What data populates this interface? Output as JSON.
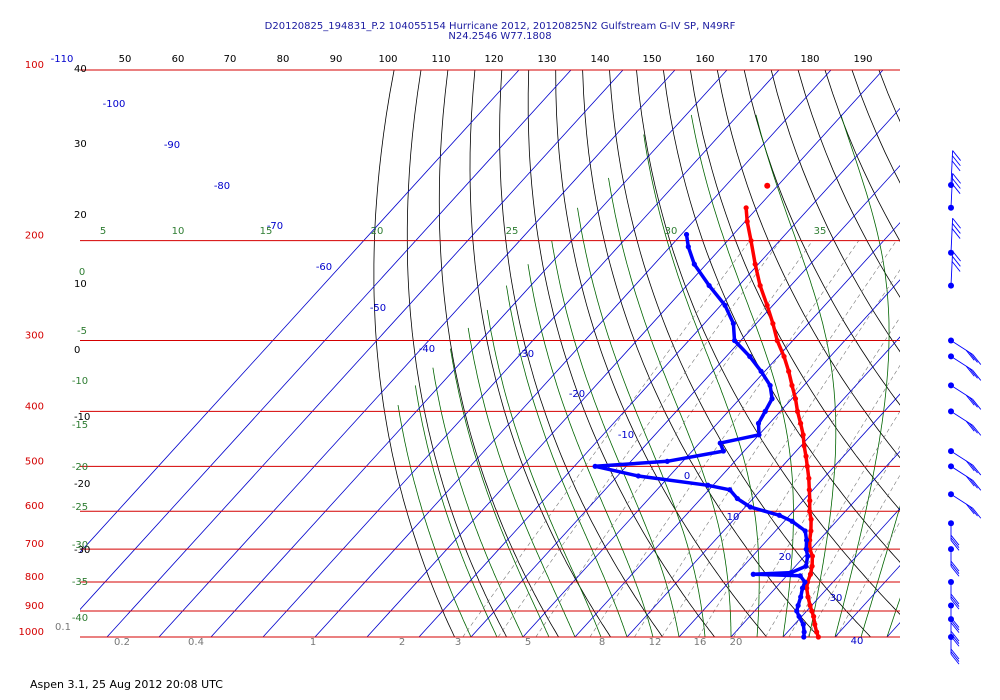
{
  "header": {
    "line1": "D20120825_194831_P.2 104055154 Hurricane 2012, 20120825N2 Gulfstream G-IV SP, N49RF",
    "line2": "N24.2546 W77.1808"
  },
  "footer": {
    "text": "Aspen 3.1, 25 Aug 2012  20:08 UTC"
  },
  "chart_data": {
    "type": "line",
    "subtype": "skew-T log-P sounding",
    "title": "D20120825_194831_P.2 104055154 Hurricane 2012, 20120825N2 Gulfstream G-IV SP, N49RF / N24.2546 W77.1808",
    "pressure_levels": [
      "100",
      "200",
      "300",
      "400",
      "500",
      "600",
      "700",
      "800",
      "900",
      "1000"
    ],
    "top_axis_labels": [
      "-110",
      "50",
      "60",
      "70",
      "80",
      "90",
      "100",
      "110",
      "120",
      "130",
      "140",
      "150",
      "160",
      "170",
      "180",
      "190"
    ],
    "left_white_labels": [
      "40",
      "30",
      "20",
      "10",
      "0",
      "-10",
      "-20",
      "-30"
    ],
    "isotherm_labels": [
      "-100",
      "-90",
      "-80",
      "-70",
      "-60",
      "-50",
      "-40",
      "-30",
      "-20",
      "-10",
      "0",
      "10",
      "20",
      "30",
      "40"
    ],
    "dry_adiabat_labels": [
      "5",
      "10",
      "15",
      "20",
      "25",
      "30",
      "35",
      "0",
      "-5",
      "-10",
      "-15",
      "-20",
      "-25",
      "-30",
      "-35",
      "-40"
    ],
    "mixing_ratio_labels": [
      "0.1",
      "0.2",
      "0.4",
      "1",
      "2",
      "3",
      "5",
      "8",
      "12",
      "16",
      "20"
    ],
    "series": [
      {
        "name": "Temperature",
        "color": "#ff0000",
        "points": [
          {
            "p": 1000,
            "t": 26.8
          },
          {
            "p": 980,
            "t": 25.6
          },
          {
            "p": 950,
            "t": 23.9
          },
          {
            "p": 920,
            "t": 22.3
          },
          {
            "p": 900,
            "t": 21.0
          },
          {
            "p": 880,
            "t": 19.7
          },
          {
            "p": 850,
            "t": 17.8
          },
          {
            "p": 820,
            "t": 16.0
          },
          {
            "p": 800,
            "t": 15.1
          },
          {
            "p": 775,
            "t": 14.3
          },
          {
            "p": 750,
            "t": 13.2
          },
          {
            "p": 720,
            "t": 11.5
          },
          {
            "p": 700,
            "t": 9.8
          },
          {
            "p": 675,
            "t": 8.2
          },
          {
            "p": 650,
            "t": 6.8
          },
          {
            "p": 620,
            "t": 4.8
          },
          {
            "p": 600,
            "t": 3.1
          },
          {
            "p": 575,
            "t": 1.3
          },
          {
            "p": 550,
            "t": -0.7
          },
          {
            "p": 525,
            "t": -2.8
          },
          {
            "p": 500,
            "t": -5.2
          },
          {
            "p": 480,
            "t": -7.2
          },
          {
            "p": 460,
            "t": -9.4
          },
          {
            "p": 440,
            "t": -11.5
          },
          {
            "p": 420,
            "t": -14.0
          },
          {
            "p": 400,
            "t": -16.7
          },
          {
            "p": 380,
            "t": -19.3
          },
          {
            "p": 360,
            "t": -22.3
          },
          {
            "p": 340,
            "t": -25.4
          },
          {
            "p": 320,
            "t": -28.9
          },
          {
            "p": 300,
            "t": -33.0
          },
          {
            "p": 280,
            "t": -36.8
          },
          {
            "p": 260,
            "t": -41.1
          },
          {
            "p": 240,
            "t": -45.9
          },
          {
            "p": 220,
            "t": -50.6
          },
          {
            "p": 200,
            "t": -55.5
          },
          {
            "p": 185,
            "t": -59.6
          },
          {
            "p": 175,
            "t": -62.2
          }
        ]
      },
      {
        "name": "Dewpoint",
        "color": "#0000ff",
        "points": [
          {
            "p": 1000,
            "t": 24.0
          },
          {
            "p": 980,
            "t": 23.2
          },
          {
            "p": 950,
            "t": 21.7
          },
          {
            "p": 920,
            "t": 19.5
          },
          {
            "p": 900,
            "t": 18.1
          },
          {
            "p": 880,
            "t": 17.4
          },
          {
            "p": 850,
            "t": 16.4
          },
          {
            "p": 820,
            "t": 15.2
          },
          {
            "p": 800,
            "t": 14.6
          },
          {
            "p": 780,
            "t": 12.6
          },
          {
            "p": 775,
            "t": 3.3
          },
          {
            "p": 770,
            "t": 10.3
          },
          {
            "p": 750,
            "t": 12.0
          },
          {
            "p": 720,
            "t": 10.6
          },
          {
            "p": 700,
            "t": 9.1
          },
          {
            "p": 675,
            "t": 7.6
          },
          {
            "p": 650,
            "t": 5.7
          },
          {
            "p": 625,
            "t": 1.5
          },
          {
            "p": 610,
            "t": -2.0
          },
          {
            "p": 590,
            "t": -9.0
          },
          {
            "p": 570,
            "t": -13.0
          },
          {
            "p": 550,
            "t": -16.0
          },
          {
            "p": 540,
            "t": -21.0
          },
          {
            "p": 520,
            "t": -36.0
          },
          {
            "p": 500,
            "t": -46.0
          },
          {
            "p": 490,
            "t": -33.0
          },
          {
            "p": 470,
            "t": -24.0
          },
          {
            "p": 455,
            "t": -26.0
          },
          {
            "p": 440,
            "t": -20.0
          },
          {
            "p": 420,
            "t": -22.1
          },
          {
            "p": 400,
            "t": -22.9
          },
          {
            "p": 380,
            "t": -23.8
          },
          {
            "p": 360,
            "t": -26.5
          },
          {
            "p": 340,
            "t": -30.7
          },
          {
            "p": 320,
            "t": -35.5
          },
          {
            "p": 300,
            "t": -41.2
          },
          {
            "p": 280,
            "t": -44.4
          },
          {
            "p": 260,
            "t": -49.2
          },
          {
            "p": 240,
            "t": -55.7
          },
          {
            "p": 220,
            "t": -62.3
          },
          {
            "p": 205,
            "t": -66.5
          },
          {
            "p": 195,
            "t": -69.0
          }
        ]
      }
    ],
    "isolated_point": {
      "p": 160,
      "t": -62.0,
      "color": "#ff0000"
    },
    "wind_barbs": {
      "pressures": [
        130,
        175,
        210,
        240,
        300,
        320,
        360,
        400,
        470,
        500,
        560,
        630,
        700,
        800,
        880,
        930,
        1000
      ],
      "color": "#0000ff"
    },
    "colors": {
      "pressure_lines": "#d40000",
      "isotherms": "#0000cc",
      "dry_adiabats": "#000000",
      "moist_adiabats": "#006400",
      "mixing_ratio": "#777777"
    }
  }
}
